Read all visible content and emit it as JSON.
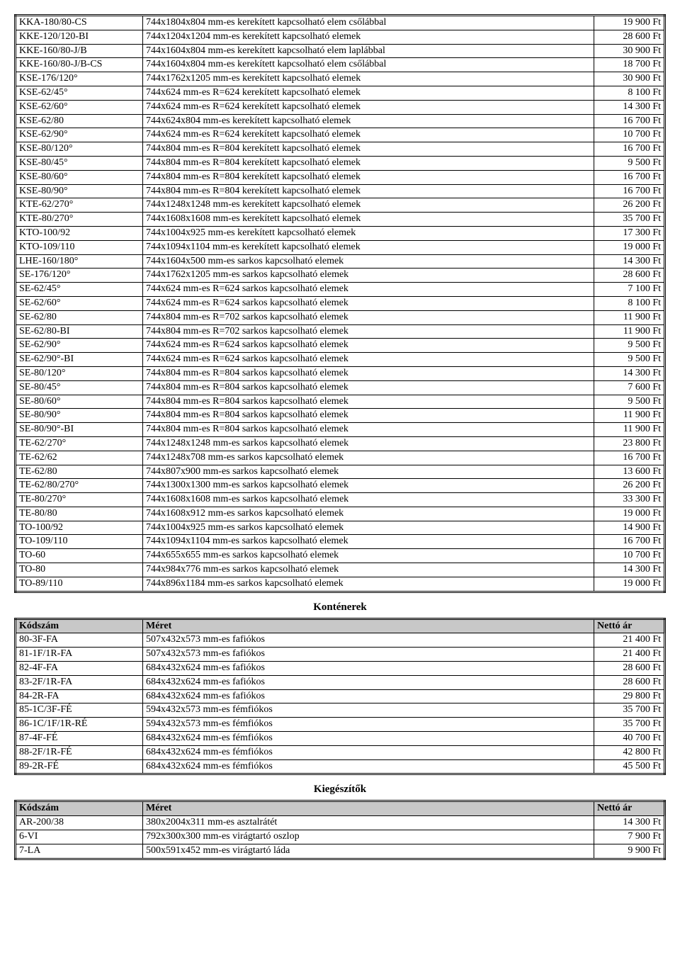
{
  "mainTable": {
    "rows": [
      {
        "code": "KKA-180/80-CS",
        "desc": "744x1804x804 mm-es kerekített kapcsolható elem csőlábbal",
        "price": "19 900 Ft"
      },
      {
        "code": "KKE-120/120-BI",
        "desc": "744x1204x1204 mm-es kerekített kapcsolható elemek",
        "price": "28 600 Ft"
      },
      {
        "code": "KKE-160/80-J/B",
        "desc": "744x1604x804 mm-es kerekített kapcsolható elem laplábbal",
        "price": "30 900 Ft"
      },
      {
        "code": "KKE-160/80-J/B-CS",
        "desc": "744x1604x804 mm-es kerekített kapcsolható elem csőlábbal",
        "price": "18 700 Ft"
      },
      {
        "code": "KSE-176/120°",
        "desc": "744x1762x1205 mm-es kerekített kapcsolható elemek",
        "price": "30 900 Ft"
      },
      {
        "code": "KSE-62/45°",
        "desc": "744x624 mm-es R=624 kerekített kapcsolható elemek",
        "price": "8 100 Ft"
      },
      {
        "code": "KSE-62/60°",
        "desc": "744x624 mm-es R=624 kerekített kapcsolható elemek",
        "price": "14 300 Ft"
      },
      {
        "code": "KSE-62/80",
        "desc": "744x624x804 mm-es kerekített kapcsolható elemek",
        "price": "16 700 Ft"
      },
      {
        "code": "KSE-62/90°",
        "desc": "744x624 mm-es R=624 kerekített kapcsolható elemek",
        "price": "10 700 Ft"
      },
      {
        "code": "KSE-80/120°",
        "desc": "744x804 mm-es R=804 kerekített kapcsolható elemek",
        "price": "16 700 Ft"
      },
      {
        "code": "KSE-80/45°",
        "desc": "744x804 mm-es R=804 kerekített kapcsolható elemek",
        "price": "9 500 Ft"
      },
      {
        "code": "KSE-80/60°",
        "desc": "744x804 mm-es R=804 kerekített kapcsolható elemek",
        "price": "16 700 Ft"
      },
      {
        "code": "KSE-80/90°",
        "desc": "744x804 mm-es R=804 kerekített kapcsolható elemek",
        "price": "16 700 Ft"
      },
      {
        "code": "KTE-62/270°",
        "desc": "744x1248x1248 mm-es kerekített kapcsolható elemek",
        "price": "26 200 Ft"
      },
      {
        "code": "KTE-80/270°",
        "desc": "744x1608x1608 mm-es kerekített kapcsolható elemek",
        "price": "35 700 Ft"
      },
      {
        "code": "KTO-100/92",
        "desc": "744x1004x925 mm-es kerekített kapcsolható elemek",
        "price": "17 300 Ft"
      },
      {
        "code": "KTO-109/110",
        "desc": "744x1094x1104 mm-es kerekített kapcsolható elemek",
        "price": "19 000 Ft"
      },
      {
        "code": "LHE-160/180°",
        "desc": "744x1604x500 mm-es sarkos kapcsolható elemek",
        "price": "14 300 Ft"
      },
      {
        "code": "SE-176/120°",
        "desc": "744x1762x1205 mm-es sarkos kapcsolható elemek",
        "price": "28 600 Ft"
      },
      {
        "code": "SE-62/45°",
        "desc": "744x624 mm-es R=624 sarkos kapcsolható elemek",
        "price": "7 100 Ft"
      },
      {
        "code": "SE-62/60°",
        "desc": "744x624 mm-es R=624 sarkos kapcsolható elemek",
        "price": "8 100 Ft"
      },
      {
        "code": "SE-62/80",
        "desc": "744x804 mm-es R=702 sarkos kapcsolható elemek",
        "price": "11 900 Ft"
      },
      {
        "code": "SE-62/80-BI",
        "desc": "744x804 mm-es R=702 sarkos kapcsolható elemek",
        "price": "11 900 Ft"
      },
      {
        "code": "SE-62/90°",
        "desc": "744x624 mm-es R=624 sarkos kapcsolható elemek",
        "price": "9 500 Ft"
      },
      {
        "code": "SE-62/90°-BI",
        "desc": "744x624 mm-es R=624 sarkos kapcsolható elemek",
        "price": "9 500 Ft"
      },
      {
        "code": "SE-80/120°",
        "desc": "744x804 mm-es R=804 sarkos kapcsolható elemek",
        "price": "14 300 Ft"
      },
      {
        "code": "SE-80/45°",
        "desc": "744x804 mm-es R=804 sarkos kapcsolható elemek",
        "price": "7 600 Ft"
      },
      {
        "code": "SE-80/60°",
        "desc": "744x804 mm-es R=804 sarkos kapcsolható elemek",
        "price": "9 500 Ft"
      },
      {
        "code": "SE-80/90°",
        "desc": "744x804 mm-es R=804 sarkos kapcsolható elemek",
        "price": "11 900 Ft"
      },
      {
        "code": "SE-80/90°-BI",
        "desc": "744x804 mm-es R=804 sarkos kapcsolható elemek",
        "price": "11 900 Ft"
      },
      {
        "code": "TE-62/270°",
        "desc": "744x1248x1248 mm-es sarkos kapcsolható elemek",
        "price": "23 800 Ft"
      },
      {
        "code": "TE-62/62",
        "desc": "744x1248x708 mm-es sarkos kapcsolható elemek",
        "price": "16 700 Ft"
      },
      {
        "code": "TE-62/80",
        "desc": "744x807x900 mm-es sarkos kapcsolható elemek",
        "price": "13 600 Ft"
      },
      {
        "code": "TE-62/80/270°",
        "desc": "744x1300x1300 mm-es sarkos kapcsolható elemek",
        "price": "26 200 Ft"
      },
      {
        "code": "TE-80/270°",
        "desc": "744x1608x1608 mm-es sarkos kapcsolható elemek",
        "price": "33 300 Ft"
      },
      {
        "code": "TE-80/80",
        "desc": "744x1608x912 mm-es sarkos kapcsolható elemek",
        "price": "19 000 Ft"
      },
      {
        "code": "TO-100/92",
        "desc": "744x1004x925 mm-es sarkos kapcsolható elemek",
        "price": "14 900 Ft"
      },
      {
        "code": "TO-109/110",
        "desc": "744x1094x1104 mm-es sarkos kapcsolható elemek",
        "price": "16 700 Ft"
      },
      {
        "code": "TO-60",
        "desc": "744x655x655 mm-es sarkos kapcsolható elemek",
        "price": "10 700 Ft"
      },
      {
        "code": "TO-80",
        "desc": "744x984x776 mm-es sarkos kapcsolható elemek",
        "price": "14 300 Ft"
      },
      {
        "code": "TO-89/110",
        "desc": "744x896x1184 mm-es sarkos kapcsolható elemek",
        "price": "19 000 Ft"
      }
    ]
  },
  "containers": {
    "title": "Konténerek",
    "header": {
      "code": "Kódszám",
      "desc": "Méret",
      "price": "Nettó ár"
    },
    "rows": [
      {
        "code": "80-3F-FA",
        "desc": "507x432x573 mm-es fafiókos",
        "price": "21 400 Ft"
      },
      {
        "code": "81-1F/1R-FA",
        "desc": "507x432x573 mm-es fafiókos",
        "price": "21 400 Ft"
      },
      {
        "code": "82-4F-FA",
        "desc": "684x432x624 mm-es fafiókos",
        "price": "28 600 Ft"
      },
      {
        "code": "83-2F/1R-FA",
        "desc": "684x432x624 mm-es fafiókos",
        "price": "28 600 Ft"
      },
      {
        "code": "84-2R-FA",
        "desc": "684x432x624 mm-es fafiókos",
        "price": "29 800 Ft"
      },
      {
        "code": "85-1C/3F-FÉ",
        "desc": "594x432x573 mm-es fémfiókos",
        "price": "35 700 Ft"
      },
      {
        "code": "86-1C/1F/1R-RÉ",
        "desc": "594x432x573 mm-es fémfiókos",
        "price": "35 700 Ft"
      },
      {
        "code": "87-4F-FÉ",
        "desc": "684x432x624 mm-es fémfiókos",
        "price": "40 700 Ft"
      },
      {
        "code": "88-2F/1R-FÉ",
        "desc": "684x432x624 mm-es fémfiókos",
        "price": "42 800 Ft"
      },
      {
        "code": "89-2R-FÉ",
        "desc": "684x432x624 mm-es fémfiókos",
        "price": "45 500 Ft"
      }
    ]
  },
  "accessories": {
    "title": "Kiegészítők",
    "header": {
      "code": "Kódszám",
      "desc": "Méret",
      "price": "Nettó ár"
    },
    "rows": [
      {
        "code": "AR-200/38",
        "desc": "380x2004x311 mm-es asztalrátét",
        "price": "14 300 Ft"
      },
      {
        "code": "6-VI",
        "desc": "792x300x300 mm-es virágtartó oszlop",
        "price": "7 900 Ft"
      },
      {
        "code": "7-LA",
        "desc": "500x591x452 mm-es virágtartó láda",
        "price": "9 900 Ft"
      }
    ]
  }
}
